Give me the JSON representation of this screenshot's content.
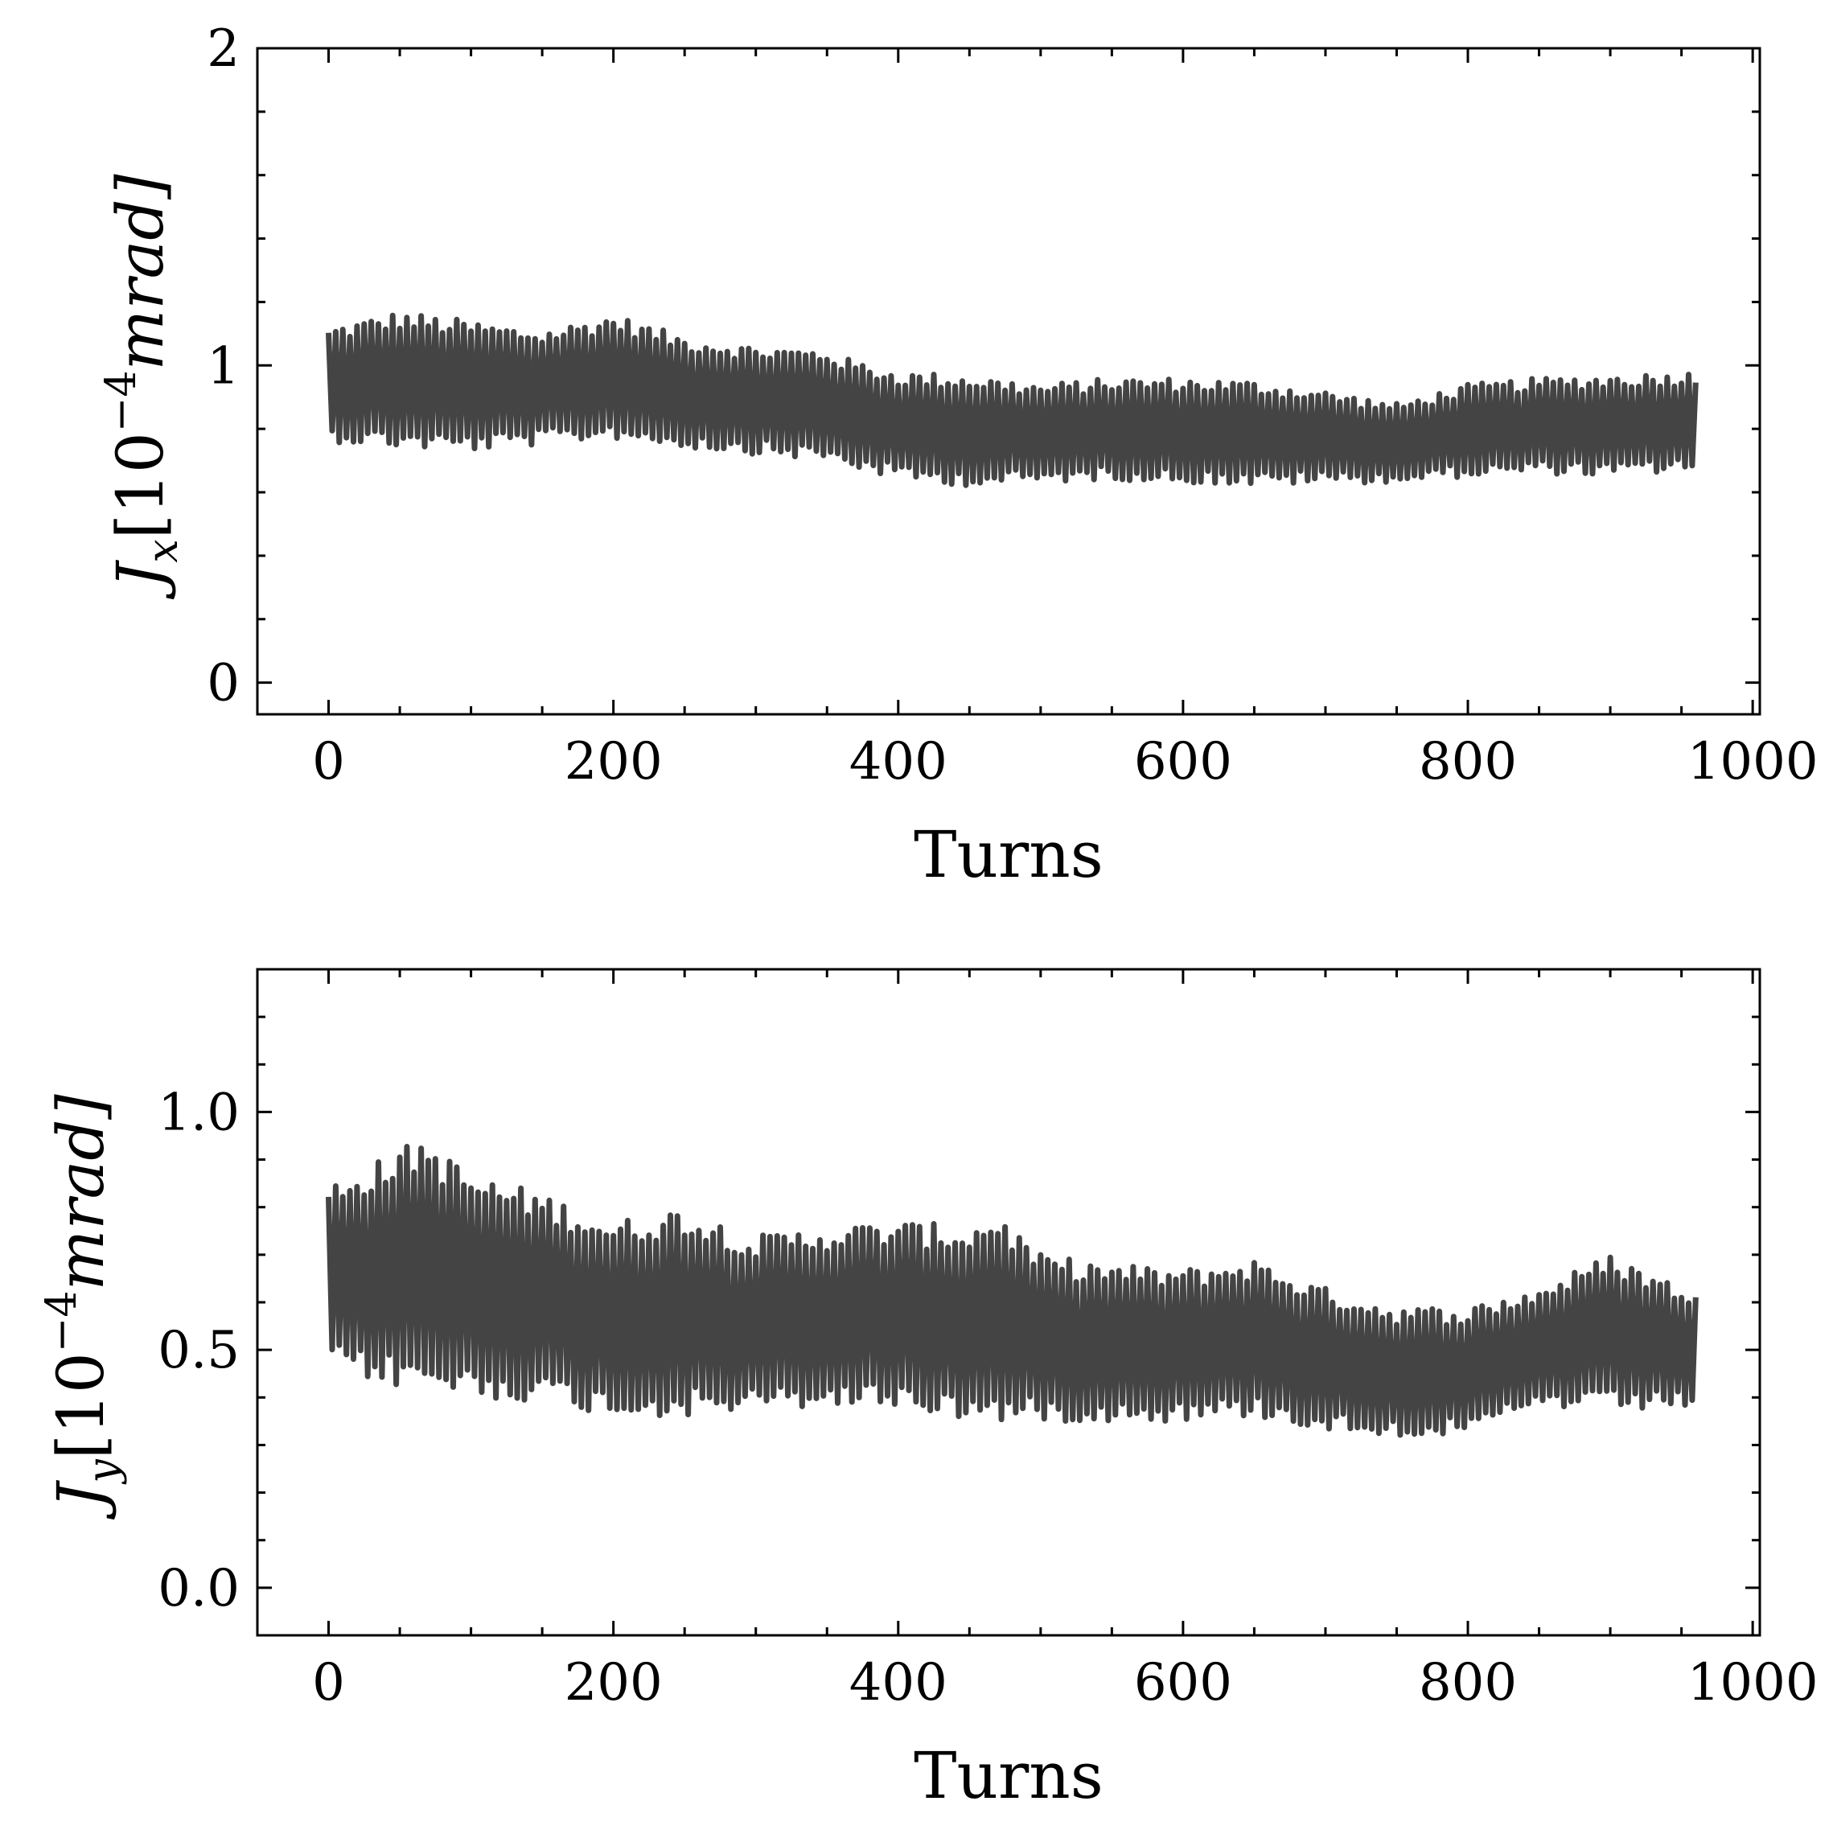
{
  "figure": {
    "background": "#ffffff",
    "line_color": "#444444"
  },
  "chart_data": [
    {
      "type": "line",
      "xlabel": "Turns",
      "ylabel": {
        "symbol": "J",
        "subscript": "x",
        "unit_prefix": "[10",
        "exponent": "−4",
        "unit": "mrad]"
      },
      "xlim": [
        -50,
        1005
      ],
      "ylim": [
        -0.1,
        2.0
      ],
      "xticks": [
        0,
        200,
        400,
        600,
        800,
        1000
      ],
      "xtick_labels": [
        "0",
        "200",
        "400",
        "600",
        "800",
        "1000"
      ],
      "yticks": [
        0,
        1,
        2
      ],
      "ytick_labels": [
        "0",
        "1",
        "2"
      ],
      "yminor_step": 0.2,
      "xminor_step": 50,
      "grid": false,
      "series": [
        {
          "name": "J_x",
          "color": "#444444",
          "x_start": 0,
          "x_end": 960,
          "oscillation_period": 5,
          "upper_envelope": {
            "x": [
              0,
              50,
              100,
              150,
              200,
              250,
              300,
              350,
              365,
              400,
              450,
              500,
              550,
              600,
              650,
              700,
              750,
              800,
              850,
              900,
              960
            ],
            "y": [
              1.12,
              1.17,
              1.14,
              1.11,
              1.16,
              1.09,
              1.06,
              1.05,
              1.02,
              0.98,
              0.97,
              0.94,
              0.96,
              0.96,
              0.95,
              0.92,
              0.88,
              0.94,
              0.96,
              0.97,
              0.98
            ]
          },
          "lower_envelope": {
            "x": [
              0,
              50,
              100,
              150,
              200,
              250,
              300,
              350,
              365,
              400,
              450,
              500,
              550,
              600,
              650,
              700,
              750,
              800,
              850,
              900,
              960
            ],
            "y": [
              0.76,
              0.74,
              0.73,
              0.75,
              0.77,
              0.74,
              0.72,
              0.7,
              0.68,
              0.64,
              0.62,
              0.63,
              0.64,
              0.63,
              0.62,
              0.63,
              0.63,
              0.65,
              0.66,
              0.65,
              0.67
            ]
          }
        }
      ]
    },
    {
      "type": "line",
      "xlabel": "Turns",
      "ylabel": {
        "symbol": "J",
        "subscript": "y",
        "unit_prefix": "[10",
        "exponent": "−4",
        "unit": "mrad]"
      },
      "xlim": [
        -50,
        1005
      ],
      "ylim": [
        -0.1,
        1.3
      ],
      "xticks": [
        0,
        200,
        400,
        600,
        800,
        1000
      ],
      "xtick_labels": [
        "0",
        "200",
        "400",
        "600",
        "800",
        "1000"
      ],
      "yticks": [
        0.0,
        0.5,
        1.0
      ],
      "ytick_labels": [
        "0.0",
        "0.5",
        "1.0"
      ],
      "yminor_step": 0.1,
      "xminor_step": 50,
      "grid": false,
      "series": [
        {
          "name": "J_y",
          "color": "#444444",
          "x_start": 0,
          "x_end": 960,
          "oscillation_period": 5,
          "upper_envelope": {
            "x": [
              0,
              50,
              65,
              100,
              150,
              200,
              250,
              300,
              350,
              400,
              450,
              470,
              500,
              550,
              600,
              650,
              700,
              750,
              800,
              850,
              900,
              960
            ],
            "y": [
              0.85,
              0.92,
              0.95,
              0.87,
              0.83,
              0.77,
              0.8,
              0.74,
              0.76,
              0.77,
              0.76,
              0.79,
              0.7,
              0.68,
              0.67,
              0.69,
              0.63,
              0.59,
              0.59,
              0.63,
              0.7,
              0.62
            ]
          },
          "lower_envelope": {
            "x": [
              0,
              50,
              100,
              150,
              200,
              250,
              300,
              350,
              400,
              450,
              500,
              550,
              600,
              650,
              700,
              750,
              800,
              850,
              900,
              960
            ],
            "y": [
              0.46,
              0.42,
              0.4,
              0.39,
              0.36,
              0.36,
              0.37,
              0.38,
              0.38,
              0.35,
              0.35,
              0.35,
              0.35,
              0.36,
              0.33,
              0.32,
              0.32,
              0.38,
              0.37,
              0.38
            ]
          }
        }
      ]
    }
  ]
}
